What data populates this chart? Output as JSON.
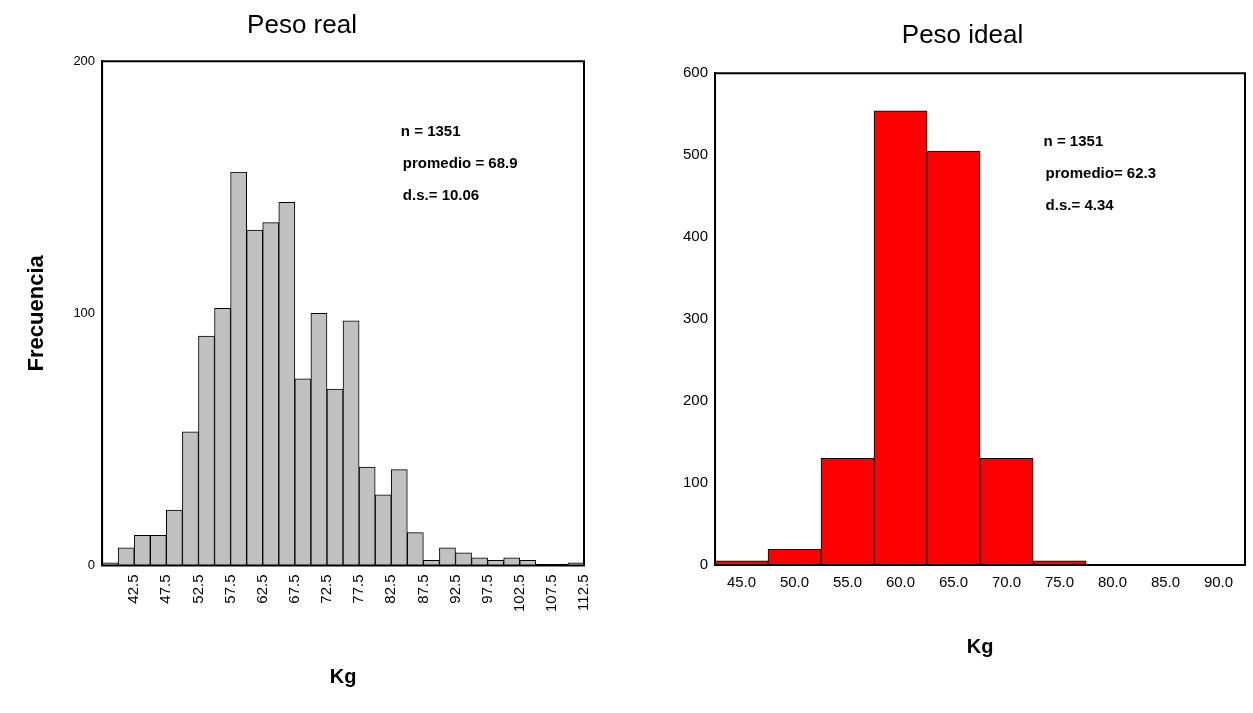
{
  "chart_data": [
    {
      "type": "histogram",
      "title": "Peso real",
      "xlabel": "Kg",
      "ylabel": "Frecuencia",
      "color": "#c0c0c0",
      "bins": [
        37.5,
        40,
        42.5,
        45,
        47.5,
        50,
        52.5,
        55,
        57.5,
        60,
        62.5,
        65,
        67.5,
        70,
        72.5,
        75,
        77.5,
        80,
        82.5,
        85,
        87.5,
        90,
        92.5,
        95,
        97.5,
        100,
        102.5,
        105,
        107.5,
        110,
        112.5
      ],
      "values": [
        1,
        7,
        12,
        12,
        22,
        53,
        91,
        102,
        156,
        133,
        136,
        144,
        74,
        100,
        70,
        97,
        39,
        28,
        38,
        13,
        2,
        7,
        5,
        3,
        2,
        3,
        2,
        0,
        0,
        1
      ],
      "xlim": [
        37.5,
        112.5
      ],
      "xticks": [
        42.5,
        47.5,
        52.5,
        57.5,
        62.5,
        67.5,
        72.5,
        77.5,
        82.5,
        87.5,
        92.5,
        97.5,
        102.5,
        107.5,
        112.5
      ],
      "ylim": [
        0,
        200
      ],
      "yticks": [
        0,
        100,
        200
      ],
      "annotations": [
        "n = 1351",
        "promedio = 68.9",
        "d.s.= 10.06"
      ]
    },
    {
      "type": "histogram",
      "title": "Peso ideal",
      "xlabel": "Kg",
      "color": "#ff0000",
      "bins": [
        42.5,
        47.5,
        52.5,
        57.5,
        62.5,
        67.5,
        72.5,
        77.5,
        82.5,
        87.5,
        92.5
      ],
      "values": [
        5,
        19,
        130,
        554,
        505,
        130,
        5,
        0,
        0,
        0
      ],
      "xlim": [
        42.5,
        92.5
      ],
      "xticks": [
        {
          "value": 45,
          "label": "45.0"
        },
        {
          "value": 50,
          "label": "50.0"
        },
        {
          "value": 55,
          "label": "55.0"
        },
        {
          "value": 60,
          "label": "60.0"
        },
        {
          "value": 65,
          "label": "65.0"
        },
        {
          "value": 70,
          "label": "70.0"
        },
        {
          "value": 75,
          "label": "75.0"
        },
        {
          "value": 80,
          "label": "80.0"
        },
        {
          "value": 85,
          "label": "85.0"
        },
        {
          "value": 90,
          "label": "90.0"
        }
      ],
      "ylim": [
        0,
        600
      ],
      "yticks": [
        0,
        100,
        200,
        300,
        400,
        500,
        600
      ],
      "annotations": [
        "n = 1351",
        "promedio= 62.3",
        "d.s.= 4.34"
      ]
    }
  ]
}
